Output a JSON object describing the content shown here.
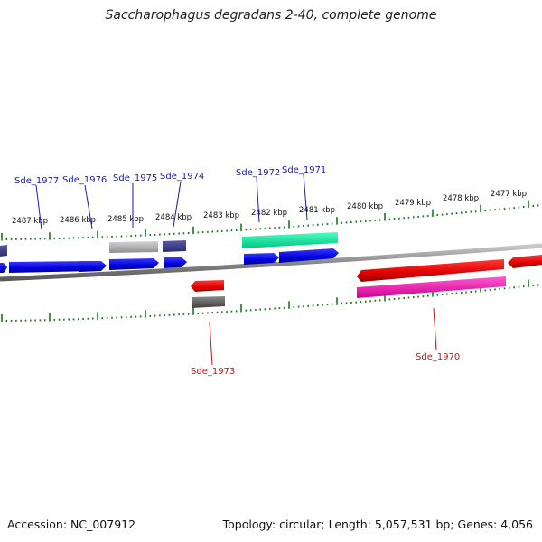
{
  "title": "Saccharophagus degradans 2-40, complete genome",
  "footer": {
    "accession": "Accession: NC_007912",
    "summary": "Topology: circular; Length: 5,057,531 bp; Genes: 4,056"
  },
  "colors": {
    "backbone": "#8a8a8a",
    "tick": "#1a7a1a",
    "label_blue": "#1a1ab4",
    "label_red": "#c81414"
  },
  "kbp_ticks": [
    "2487 kbp",
    "2486 kbp",
    "2485 kbp",
    "2484 kbp",
    "2483 kbp",
    "2482 kbp",
    "2481 kbp",
    "2480 kbp",
    "2479 kbp",
    "2478 kbp",
    "2477 kbp"
  ],
  "gene_labels": [
    {
      "text": "Sde_1977",
      "color": "#1a1ab4"
    },
    {
      "text": "Sde_1976",
      "color": "#1a1ab4"
    },
    {
      "text": "Sde_1975",
      "color": "#1a1ab4"
    },
    {
      "text": "Sde_1974",
      "color": "#1a1ab4"
    },
    {
      "text": "Sde_1972",
      "color": "#1a1ab4"
    },
    {
      "text": "Sde_1971",
      "color": "#1a1ab4"
    },
    {
      "text": "Sde_1973",
      "color": "#c81414"
    },
    {
      "text": "Sde_1970",
      "color": "#c81414"
    }
  ]
}
